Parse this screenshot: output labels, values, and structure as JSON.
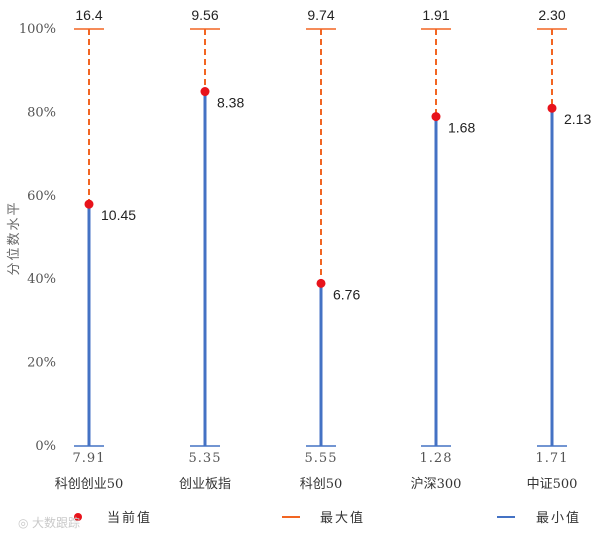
{
  "chart_data": {
    "type": "range-dot",
    "ylabel": "分位数水平",
    "ylim": [
      0,
      100
    ],
    "y_ticks": [
      "0%",
      "20%",
      "40%",
      "60%",
      "80%",
      "100%"
    ],
    "categories": [
      "科创创业50",
      "创业板指",
      "科创50",
      "沪深300",
      "中证500"
    ],
    "min_values": [
      "7.91",
      "5.35",
      "5.55",
      "1.28",
      "1.71"
    ],
    "max_values": [
      "16.4",
      "9.56",
      "9.74",
      "1.91",
      "2.30"
    ],
    "current_values": [
      "10.45",
      "8.38",
      "6.76",
      "1.68",
      "2.13"
    ],
    "current_percentile": [
      58,
      85,
      39,
      79,
      81
    ],
    "legend": [
      {
        "label": "当前值",
        "kind": "dot"
      },
      {
        "label": "最大值",
        "kind": "dash"
      },
      {
        "label": "最小值",
        "kind": "line"
      }
    ],
    "colors": {
      "current": "#e8131b",
      "max": "#f26522",
      "min": "#4472c4"
    }
  },
  "watermark": "大数跟踪"
}
